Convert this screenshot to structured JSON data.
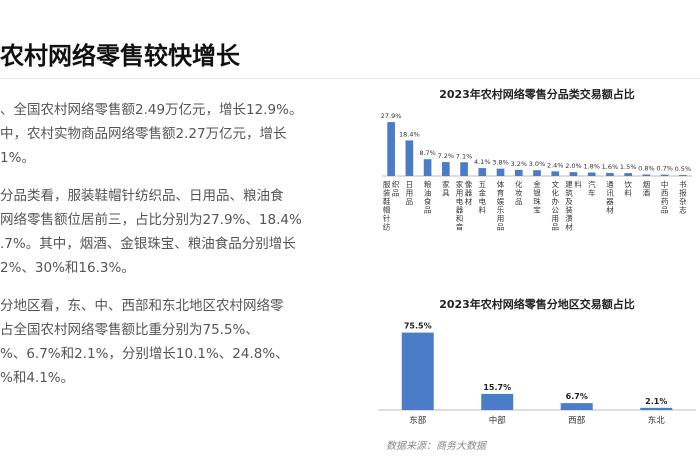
{
  "page": {
    "title": "农村网络零售较快增长",
    "paragraphs": [
      {
        "lines": [
          "、全国农村网络零售额2.49万亿元，增长12.9%。",
          "中，农村实物商品网络零售额2.27万亿元，增长",
          "1%。"
        ]
      },
      {
        "lines": [
          "分品类看，服装鞋帽针纺织品、日用品、粮油食",
          "网络零售额位居前三，占比分别为27.9%、18.4%",
          ".7%。其中，烟酒、金银珠宝、粮油食品分别增长",
          "2%、30%和16.3%。"
        ]
      },
      {
        "lines": [
          "分地区看，东、中、西部和东北地区农村网络零",
          "占全国农村网络零售额比重分别为75.5%、",
          "%、6.7%和2.1%，分别增长10.1%、24.8%、",
          "%和4.1%。"
        ]
      }
    ],
    "source": "数据来源：商务大数据"
  },
  "chart_data": [
    {
      "type": "bar",
      "title": "2023年农村网络零售分品类交易额占比",
      "bar_color": "#4a7cc7",
      "categories": [
        "服装鞋帽针纺织品",
        "日用品",
        "粮油食品",
        "家具",
        "家用电器和音像器材",
        "五金电料",
        "体育娱乐用品",
        "化妆品",
        "金银珠宝",
        "文化办公用品",
        "建筑及装潢材料",
        "汽车",
        "通讯器材",
        "饮料",
        "烟酒",
        "中西药品",
        "书报杂志"
      ],
      "values": [
        27.9,
        18.4,
        8.7,
        7.2,
        7.1,
        4.1,
        3.8,
        3.2,
        3.0,
        2.4,
        2.0,
        1.8,
        1.6,
        1.5,
        0.8,
        0.7,
        0.5
      ],
      "labels": [
        "27.9%",
        "18.4%",
        "8.7%",
        "7.2%",
        "7.1%",
        "4.1%",
        "3.8%",
        "3.2%",
        "3.0%",
        "2.4%",
        "2.0%",
        "1.8%",
        "1.6%",
        "1.5%",
        "0.8%",
        "0.7%",
        "0.5%"
      ],
      "ylim": [
        0,
        30
      ],
      "grid": false,
      "legend": "none"
    },
    {
      "type": "bar",
      "title": "2023年农村网络零售分地区交易额占比",
      "bar_color": "#4a7cc7",
      "categories": [
        "东部",
        "中部",
        "西部",
        "东北"
      ],
      "values": [
        75.5,
        15.7,
        6.7,
        2.1
      ],
      "labels": [
        "75.5%",
        "15.7%",
        "6.7%",
        "2.1%"
      ],
      "ylim": [
        0,
        80
      ],
      "grid": false,
      "legend": "none"
    }
  ]
}
